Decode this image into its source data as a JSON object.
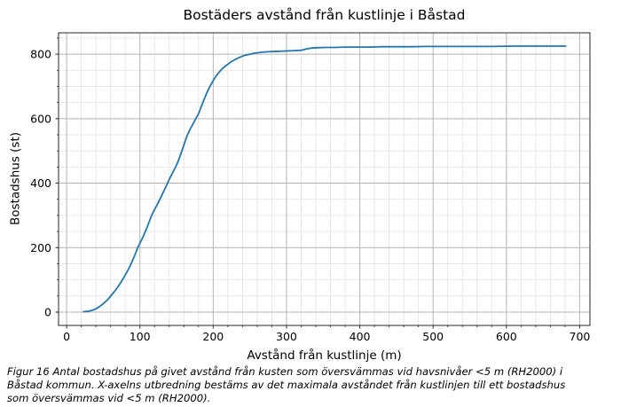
{
  "figure": {
    "caption_lines": [
      "Figur 16 Antal bostadshus på givet avstånd från kusten som översvämmas vid havsnivåer <5 m (RH2000) i",
      "Båstad kommun. X-axelns utbredning bestäms av det maximala avståndet från kustlinjen till ett bostadshus",
      "som översvämmas vid <5 m (RH2000)."
    ]
  },
  "chart_data": {
    "type": "line",
    "title": "Bostäders avstånd från kustlinje i Båstad",
    "xlabel": "Avstånd från kustlinje (m)",
    "ylabel": "Bostadshus (st)",
    "x_ticks": [
      0,
      100,
      200,
      300,
      400,
      500,
      600,
      700
    ],
    "y_ticks": [
      0,
      200,
      400,
      600,
      800
    ],
    "x_minor_step": 20,
    "y_minor_step": 50,
    "xlim": [
      -11,
      714
    ],
    "ylim": [
      -41.25,
      866.25
    ],
    "grid": "both",
    "legend": "none",
    "colors": {
      "line": "#1f77b4",
      "grid_major": "#b4b4b4",
      "grid_minor": "#e3e3e3",
      "spine": "#262626",
      "text": "#000000"
    },
    "series": [
      {
        "points": [
          [
            23,
            1
          ],
          [
            26,
            2
          ],
          [
            30,
            3
          ],
          [
            34,
            5
          ],
          [
            38,
            8
          ],
          [
            42,
            13
          ],
          [
            46,
            19
          ],
          [
            50,
            26
          ],
          [
            54,
            34
          ],
          [
            58,
            44
          ],
          [
            62,
            55
          ],
          [
            66,
            66
          ],
          [
            70,
            78
          ],
          [
            74,
            92
          ],
          [
            78,
            107
          ],
          [
            82,
            123
          ],
          [
            86,
            140
          ],
          [
            90,
            160
          ],
          [
            94,
            182
          ],
          [
            97,
            200
          ],
          [
            100,
            213
          ],
          [
            104,
            232
          ],
          [
            108,
            253
          ],
          [
            112,
            276
          ],
          [
            116,
            300
          ],
          [
            120,
            318
          ],
          [
            124,
            335
          ],
          [
            128,
            353
          ],
          [
            132,
            372
          ],
          [
            136,
            392
          ],
          [
            140,
            412
          ],
          [
            144,
            430
          ],
          [
            148,
            447
          ],
          [
            152,
            467
          ],
          [
            156,
            492
          ],
          [
            160,
            518
          ],
          [
            164,
            545
          ],
          [
            168,
            565
          ],
          [
            172,
            582
          ],
          [
            176,
            599
          ],
          [
            180,
            615
          ],
          [
            184,
            639
          ],
          [
            188,
            662
          ],
          [
            192,
            683
          ],
          [
            196,
            702
          ],
          [
            200,
            718
          ],
          [
            204,
            732
          ],
          [
            208,
            744
          ],
          [
            212,
            754
          ],
          [
            216,
            762
          ],
          [
            220,
            769
          ],
          [
            224,
            776
          ],
          [
            228,
            781
          ],
          [
            232,
            786
          ],
          [
            236,
            790
          ],
          [
            240,
            794
          ],
          [
            244,
            797
          ],
          [
            248,
            799
          ],
          [
            252,
            801
          ],
          [
            256,
            803
          ],
          [
            260,
            804
          ],
          [
            266,
            806
          ],
          [
            272,
            807
          ],
          [
            280,
            808
          ],
          [
            290,
            809
          ],
          [
            300,
            810
          ],
          [
            310,
            811
          ],
          [
            320,
            812
          ],
          [
            327,
            816
          ],
          [
            334,
            819
          ],
          [
            342,
            820
          ],
          [
            352,
            821
          ],
          [
            366,
            821
          ],
          [
            380,
            822
          ],
          [
            396,
            822
          ],
          [
            412,
            822
          ],
          [
            430,
            823
          ],
          [
            450,
            823
          ],
          [
            470,
            823
          ],
          [
            490,
            824
          ],
          [
            520,
            824
          ],
          [
            550,
            824
          ],
          [
            580,
            824
          ],
          [
            610,
            825
          ],
          [
            645,
            825
          ],
          [
            681,
            825
          ]
        ]
      }
    ]
  }
}
